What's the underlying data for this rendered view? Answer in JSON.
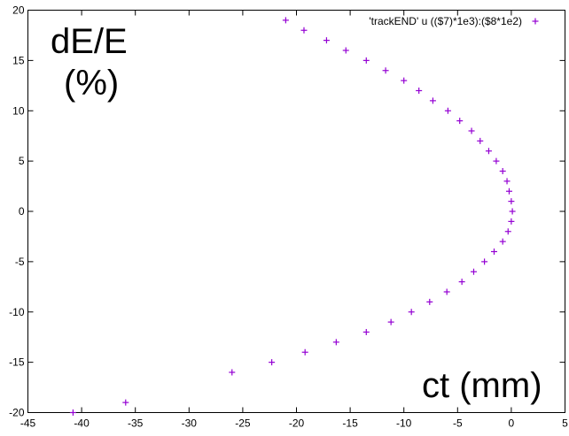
{
  "chart_data": {
    "type": "scatter",
    "title": "",
    "xlabel": "ct (mm)",
    "ylabel": "dE/E",
    "ylabel_unit": "(%)",
    "xlim": [
      -45,
      5
    ],
    "ylim": [
      -20,
      20
    ],
    "xticks": [
      "-45",
      "-40",
      "-35",
      "-30",
      "-25",
      "-20",
      "-15",
      "-10",
      "-5",
      "0",
      "5"
    ],
    "yticks": [
      "-20",
      "-15",
      "-10",
      "-5",
      "0",
      "5",
      "10",
      "15",
      "20"
    ],
    "grid": false,
    "legend_position": "top-right",
    "marker": "plus",
    "color": "#9400d3",
    "series": [
      {
        "name": "'trackEND' u (($7)*1e3):($8*1e2)",
        "points": [
          [
            -21.0,
            19
          ],
          [
            -19.3,
            18
          ],
          [
            -17.2,
            17
          ],
          [
            -15.4,
            16
          ],
          [
            -13.5,
            15
          ],
          [
            -11.7,
            14
          ],
          [
            -10.0,
            13
          ],
          [
            -8.6,
            12
          ],
          [
            -7.3,
            11
          ],
          [
            -5.9,
            10
          ],
          [
            -4.8,
            9
          ],
          [
            -3.7,
            8
          ],
          [
            -2.9,
            7
          ],
          [
            -2.1,
            6
          ],
          [
            -1.4,
            5
          ],
          [
            -0.8,
            4
          ],
          [
            -0.4,
            3
          ],
          [
            -0.2,
            2
          ],
          [
            0.0,
            1
          ],
          [
            0.1,
            0
          ],
          [
            0.0,
            -1
          ],
          [
            -0.3,
            -2
          ],
          [
            -0.8,
            -3
          ],
          [
            -1.6,
            -4
          ],
          [
            -2.5,
            -5
          ],
          [
            -3.5,
            -6
          ],
          [
            -4.6,
            -7
          ],
          [
            -6.0,
            -8
          ],
          [
            -7.6,
            -9
          ],
          [
            -9.3,
            -10
          ],
          [
            -11.2,
            -11
          ],
          [
            -13.5,
            -12
          ],
          [
            -16.3,
            -13
          ],
          [
            -19.2,
            -14
          ],
          [
            -22.3,
            -15
          ],
          [
            -26.0,
            -16
          ],
          [
            -35.9,
            -19
          ],
          [
            -40.8,
            -20
          ]
        ]
      }
    ]
  }
}
